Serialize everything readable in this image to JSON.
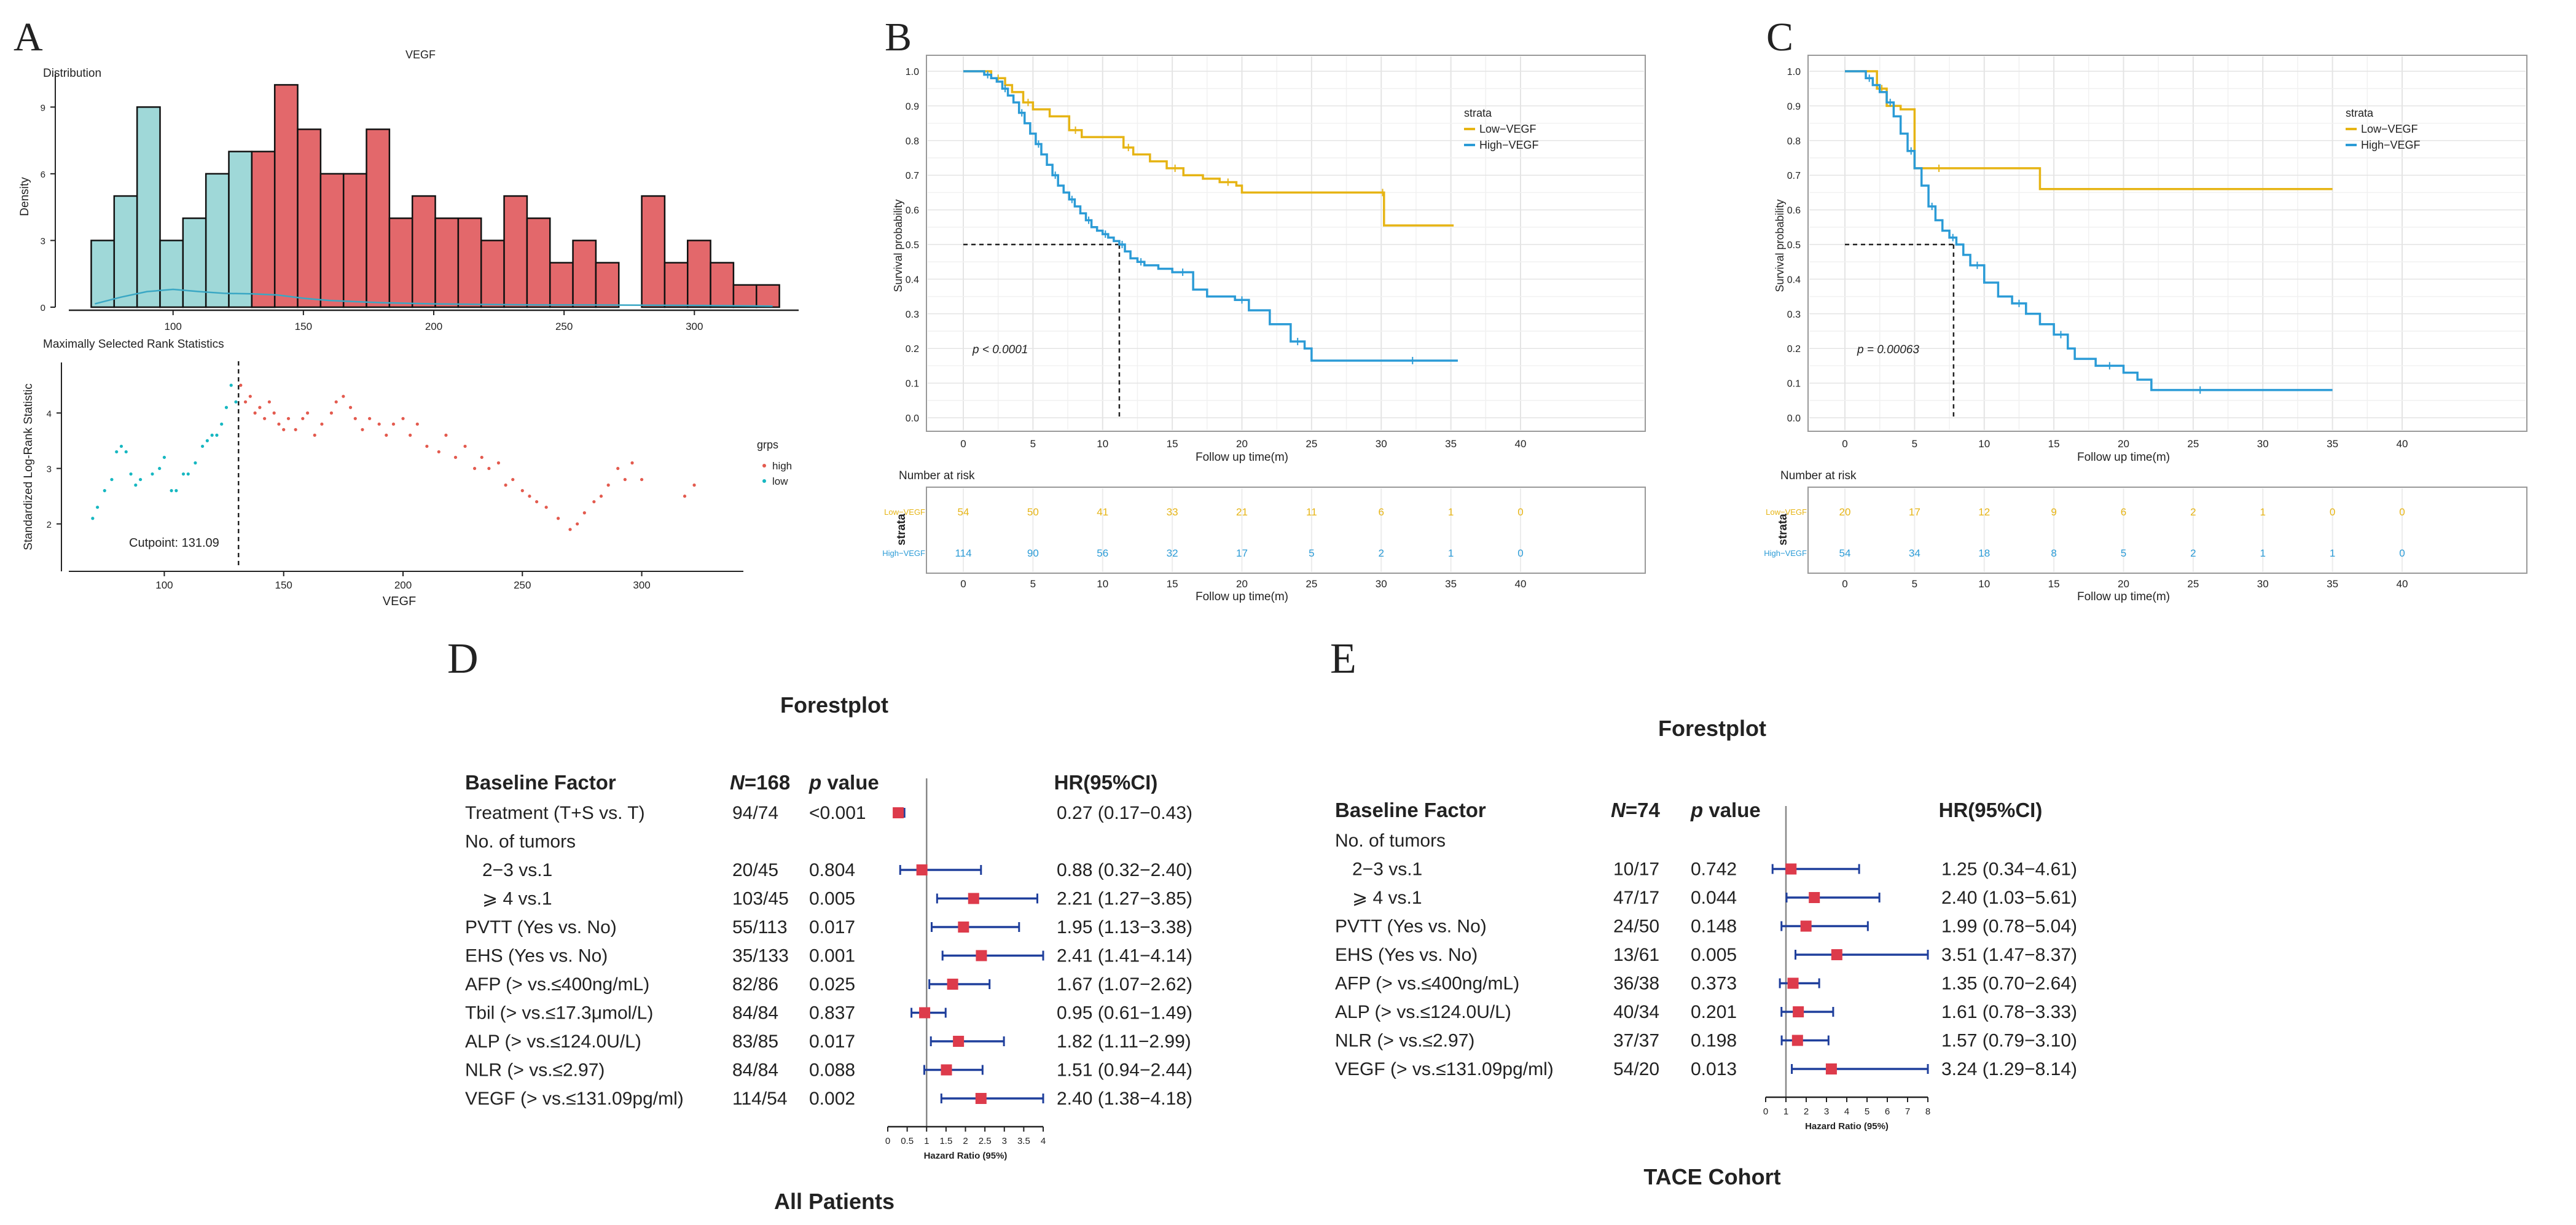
{
  "panel_letters": {
    "a": "A",
    "b": "B",
    "c": "C",
    "d": "D",
    "e": "E"
  },
  "colors": {
    "teal": "#9fd8d8",
    "red": "#e3686b",
    "gold": "#e6b414",
    "blue": "#2b9bd6",
    "navy": "#1f3f9c",
    "dark": "#222222"
  },
  "chart_data": [
    {
      "id": "A-top",
      "type": "bar",
      "title": "VEGF",
      "subtitle": "Distribution",
      "xlabel": "",
      "ylabel": "Density",
      "xlim": [
        60,
        340
      ],
      "ylim": [
        0,
        10.5
      ],
      "xticks": [
        100,
        150,
        200,
        250,
        300
      ],
      "yticks": [
        0,
        3,
        6,
        9
      ],
      "bin_width": 8.8,
      "series": [
        {
          "name": "low",
          "color_key": "teal",
          "starts": [
            68.6,
            77.4,
            86.2,
            95,
            103.8,
            112.6,
            121.4,
            130.2
          ],
          "values": [
            3,
            5,
            9,
            3,
            4,
            6,
            7,
            2
          ]
        },
        {
          "name": "high",
          "color_key": "red",
          "starts": [
            130.2,
            139,
            147.8,
            156.6,
            165.4,
            174.2,
            183,
            191.8,
            200.6,
            209.4,
            218.2,
            227,
            235.8,
            244.6,
            253.4,
            262.2,
            271,
            279.8,
            288.6,
            297.4,
            306.2,
            315,
            323.8
          ],
          "values": [
            7,
            10,
            8,
            6,
            6,
            8,
            4,
            5,
            4,
            4,
            3,
            5,
            4,
            2,
            3,
            2,
            0,
            5,
            2,
            3,
            2,
            1,
            1
          ]
        }
      ],
      "density_curve": {
        "x": [
          70,
          80,
          90,
          100,
          110,
          120,
          130,
          140,
          150,
          160,
          170,
          180,
          200,
          220,
          240,
          260,
          280,
          300,
          320,
          330
        ],
        "y": [
          0.15,
          0.45,
          0.7,
          0.8,
          0.7,
          0.62,
          0.6,
          0.55,
          0.4,
          0.3,
          0.25,
          0.2,
          0.15,
          0.12,
          0.1,
          0.1,
          0.09,
          0.08,
          0.06,
          0.05
        ]
      }
    },
    {
      "id": "A-bottom",
      "type": "scatter",
      "title": "Maximally Selected Rank Statistics",
      "xlabel": "VEGF",
      "ylabel": "Standardized Log-Rank Statistic",
      "xlim": [
        60,
        340
      ],
      "ylim": [
        1.2,
        5.0
      ],
      "xticks": [
        100,
        150,
        200,
        250,
        300
      ],
      "yticks": [
        2,
        3,
        4
      ],
      "cutpoint": 131.09,
      "cutpoint_label": "Cutpoint: 131.09",
      "legend_title": "grps",
      "legend_items": [
        "high",
        "low"
      ],
      "series": [
        {
          "name": "low",
          "color_key": "teal",
          "x": [
            70,
            72,
            75,
            78,
            80,
            82,
            84,
            86,
            88,
            90,
            95,
            98,
            100,
            103,
            105,
            108,
            110,
            113,
            116,
            118,
            120,
            122,
            124,
            126,
            128,
            130
          ],
          "y": [
            2.1,
            2.3,
            2.6,
            2.8,
            3.3,
            3.4,
            3.3,
            2.9,
            2.7,
            2.8,
            2.9,
            3.0,
            3.2,
            2.6,
            2.6,
            2.9,
            2.9,
            3.1,
            3.4,
            3.5,
            3.6,
            3.6,
            3.8,
            4.1,
            4.5,
            4.2
          ]
        },
        {
          "name": "high",
          "color_key": "red",
          "x": [
            132,
            134,
            136,
            138,
            140,
            142,
            144,
            146,
            148,
            150,
            152,
            155,
            158,
            160,
            163,
            166,
            170,
            172,
            175,
            178,
            180,
            183,
            186,
            190,
            193,
            196,
            200,
            203,
            206,
            210,
            215,
            218,
            222,
            226,
            230,
            233,
            236,
            240,
            243,
            246,
            250,
            253,
            256,
            260,
            265,
            270,
            273,
            276,
            280,
            283,
            286,
            290,
            293,
            296,
            300,
            318,
            322
          ],
          "y": [
            4.5,
            4.2,
            4.3,
            4.0,
            4.1,
            3.9,
            4.2,
            4.0,
            3.8,
            3.7,
            3.9,
            3.7,
            3.9,
            4.0,
            3.6,
            3.8,
            4.0,
            4.2,
            4.3,
            4.1,
            3.9,
            3.7,
            3.9,
            3.8,
            3.6,
            3.8,
            3.9,
            3.6,
            3.8,
            3.4,
            3.3,
            3.6,
            3.2,
            3.4,
            3.0,
            3.2,
            3.0,
            3.1,
            2.7,
            2.8,
            2.6,
            2.5,
            2.4,
            2.3,
            2.1,
            1.9,
            2.0,
            2.2,
            2.4,
            2.5,
            2.7,
            3.0,
            2.8,
            3.1,
            2.8,
            2.5,
            2.7
          ]
        }
      ]
    },
    {
      "id": "B",
      "type": "line",
      "xlabel": "Follow up time(m)",
      "ylabel": "Survival probability",
      "xlim": [
        0,
        40
      ],
      "ylim": [
        0,
        1
      ],
      "xticks": [
        0,
        5,
        10,
        15,
        20,
        25,
        30,
        35,
        40
      ],
      "yticks": [
        0.0,
        0.1,
        0.2,
        0.3,
        0.4,
        0.5,
        0.6,
        0.7,
        0.8,
        0.9,
        1.0
      ],
      "pvalue": "p < 0.0001",
      "legend_title": "strata",
      "median_x": 11.2,
      "series": [
        {
          "name": "Low−VEGF",
          "color_key": "gold",
          "x": [
            0,
            2,
            3,
            3.5,
            4.3,
            5,
            6.2,
            7.6,
            8.5,
            10,
            11.5,
            12.2,
            13.4,
            14.6,
            15.8,
            17.2,
            18.4,
            19.6,
            20,
            30,
            30.2,
            35.2
          ],
          "y": [
            1.0,
            0.98,
            0.96,
            0.94,
            0.91,
            0.89,
            0.87,
            0.83,
            0.81,
            0.81,
            0.78,
            0.76,
            0.74,
            0.72,
            0.7,
            0.69,
            0.68,
            0.67,
            0.65,
            0.65,
            0.555,
            0.555
          ]
        },
        {
          "name": "High−VEGF",
          "color_key": "blue",
          "x": [
            0,
            1.5,
            2,
            2.4,
            2.8,
            3.2,
            3.6,
            4,
            4.4,
            4.8,
            5.2,
            5.6,
            6,
            6.4,
            6.8,
            7.2,
            7.6,
            8,
            8.4,
            8.8,
            9.2,
            9.6,
            10,
            10.4,
            10.8,
            11.2,
            11.6,
            12,
            12.5,
            13,
            14,
            15,
            16.5,
            17.5,
            19.5,
            20.5,
            22,
            23.5,
            24.5,
            25,
            29,
            35.5
          ],
          "y": [
            1.0,
            0.99,
            0.98,
            0.97,
            0.95,
            0.93,
            0.91,
            0.88,
            0.85,
            0.82,
            0.79,
            0.76,
            0.73,
            0.7,
            0.67,
            0.65,
            0.63,
            0.61,
            0.59,
            0.57,
            0.55,
            0.54,
            0.53,
            0.52,
            0.51,
            0.5,
            0.48,
            0.46,
            0.45,
            0.44,
            0.43,
            0.42,
            0.37,
            0.35,
            0.34,
            0.31,
            0.27,
            0.22,
            0.2,
            0.165,
            0.165,
            0.165
          ]
        }
      ],
      "risk_table": {
        "title": "Number at risk",
        "ylabel": "strata",
        "row_labels": [
          "Low−VEGF",
          "High−VEGF"
        ],
        "times": [
          0,
          5,
          10,
          15,
          20,
          25,
          30,
          35,
          40
        ],
        "rows": [
          [
            "54",
            "50",
            "41",
            "33",
            "21",
            "11",
            "6",
            "1",
            "0"
          ],
          [
            "114",
            "90",
            "56",
            "32",
            "17",
            "5",
            "2",
            "1",
            "0"
          ]
        ]
      }
    },
    {
      "id": "C",
      "type": "line",
      "xlabel": "Follow up time(m)",
      "ylabel": "Survival probability",
      "xlim": [
        0,
        40
      ],
      "ylim": [
        0,
        1
      ],
      "xticks": [
        0,
        5,
        10,
        15,
        20,
        25,
        30,
        35,
        40
      ],
      "yticks": [
        0.0,
        0.1,
        0.2,
        0.3,
        0.4,
        0.5,
        0.6,
        0.7,
        0.8,
        0.9,
        1.0
      ],
      "pvalue": "p = 0.00063",
      "legend_title": "strata",
      "median_x": 7.8,
      "series": [
        {
          "name": "Low−VEGF",
          "color_key": "gold",
          "x": [
            0,
            2.3,
            3,
            4,
            5,
            8.5,
            14,
            35
          ],
          "y": [
            1.0,
            0.95,
            0.9,
            0.89,
            0.72,
            0.72,
            0.66,
            0.66
          ]
        },
        {
          "name": "High−VEGF",
          "color_key": "blue",
          "x": [
            0,
            1.5,
            2,
            2.5,
            3,
            3.5,
            4,
            4.5,
            5,
            5.5,
            6,
            6.5,
            7,
            7.5,
            8,
            8.5,
            9,
            10,
            11,
            12,
            13,
            14,
            15,
            16,
            16.5,
            18,
            20,
            21,
            22,
            29,
            35
          ],
          "y": [
            1.0,
            0.98,
            0.96,
            0.94,
            0.91,
            0.87,
            0.82,
            0.77,
            0.72,
            0.67,
            0.61,
            0.57,
            0.54,
            0.52,
            0.5,
            0.47,
            0.44,
            0.39,
            0.35,
            0.33,
            0.3,
            0.27,
            0.24,
            0.2,
            0.17,
            0.15,
            0.13,
            0.11,
            0.08,
            0.08,
            0.08
          ]
        }
      ],
      "risk_table": {
        "title": "Number at risk",
        "ylabel": "strata",
        "row_labels": [
          "Low−VEGF",
          "High−VEGF"
        ],
        "times": [
          0,
          5,
          10,
          15,
          20,
          25,
          30,
          35,
          40
        ],
        "rows": [
          [
            "20",
            "17",
            "12",
            "9",
            "6",
            "2",
            "1",
            "0",
            "0"
          ],
          [
            "54",
            "34",
            "18",
            "8",
            "5",
            "2",
            "1",
            "1",
            "0"
          ]
        ]
      }
    },
    {
      "id": "D",
      "type": "table",
      "title": "Forestplot",
      "caption": "All Patients",
      "headers": {
        "factor": "Baseline Factor",
        "n_label": "N",
        "n_total": "=168",
        "p": "p",
        "p_suffix": " value",
        "hr": "HR(95%CI)"
      },
      "axis_label": "Hazard Ratio (95%)",
      "xlim": [
        0,
        4
      ],
      "xticks": [
        "0",
        "0.5",
        "1",
        "1.5",
        "2",
        "2.5",
        "3",
        "3.5",
        "4"
      ],
      "rows": [
        {
          "factor": "Treatment (T+S vs. T)",
          "n": "94/74",
          "p": "<0.001",
          "hr_text": "0.27 (0.17−0.43)",
          "hr": 0.27,
          "lo": 0.17,
          "hi": 0.43
        },
        {
          "factor": "No. of tumors",
          "n": "",
          "p": "",
          "hr_text": "",
          "hr": null,
          "lo": null,
          "hi": null
        },
        {
          "factor": "  2−3 vs.1",
          "n": "20/45",
          "p": "0.804",
          "hr_text": "0.88 (0.32−2.40)",
          "hr": 0.88,
          "lo": 0.32,
          "hi": 2.4
        },
        {
          "factor": "  ⩾ 4 vs.1",
          "n": "103/45",
          "p": "0.005",
          "hr_text": "2.21 (1.27−3.85)",
          "hr": 2.21,
          "lo": 1.27,
          "hi": 3.85
        },
        {
          "factor": "PVTT (Yes vs. No)",
          "n": "55/113",
          "p": "0.017",
          "hr_text": "1.95 (1.13−3.38)",
          "hr": 1.95,
          "lo": 1.13,
          "hi": 3.38
        },
        {
          "factor": "EHS (Yes vs. No)",
          "n": "35/133",
          "p": "0.001",
          "hr_text": "2.41 (1.41−4.14)",
          "hr": 2.41,
          "lo": 1.41,
          "hi": 4.14
        },
        {
          "factor": "AFP (> vs.≤400ng/mL)",
          "n": "82/86",
          "p": "0.025",
          "hr_text": "1.67 (1.07−2.62)",
          "hr": 1.67,
          "lo": 1.07,
          "hi": 2.62
        },
        {
          "factor": "Tbil (> vs.≤17.3μmol/L)",
          "n": "84/84",
          "p": "0.837",
          "hr_text": "0.95 (0.61−1.49)",
          "hr": 0.95,
          "lo": 0.61,
          "hi": 1.49
        },
        {
          "factor": "ALP (> vs.≤124.0U/L)",
          "n": "83/85",
          "p": "0.017",
          "hr_text": "1.82 (1.11−2.99)",
          "hr": 1.82,
          "lo": 1.11,
          "hi": 2.99
        },
        {
          "factor": "NLR (> vs.≤2.97)",
          "n": "84/84",
          "p": "0.088",
          "hr_text": "1.51 (0.94−2.44)",
          "hr": 1.51,
          "lo": 0.94,
          "hi": 2.44
        },
        {
          "factor": "VEGF (> vs.≤131.09pg/ml)",
          "n": "114/54",
          "p": "0.002",
          "hr_text": "2.40 (1.38−4.18)",
          "hr": 2.4,
          "lo": 1.38,
          "hi": 4.18
        }
      ]
    },
    {
      "id": "E",
      "type": "table",
      "title": "Forestplot",
      "caption": "TACE Cohort",
      "headers": {
        "factor": "Baseline Factor",
        "n_label": "N",
        "n_total": "=74",
        "p": "p",
        "p_suffix": " value",
        "hr": "HR(95%CI)"
      },
      "axis_label": "Hazard Ratio (95%)",
      "xlim": [
        0,
        8
      ],
      "xticks": [
        "0",
        "1",
        "2",
        "3",
        "4",
        "5",
        "6",
        "7",
        "8"
      ],
      "rows": [
        {
          "factor": "No. of tumors",
          "n": "",
          "p": "",
          "hr_text": "",
          "hr": null,
          "lo": null,
          "hi": null
        },
        {
          "factor": "  2−3 vs.1",
          "n": "10/17",
          "p": "0.742",
          "hr_text": "1.25 (0.34−4.61)",
          "hr": 1.25,
          "lo": 0.34,
          "hi": 4.61
        },
        {
          "factor": "  ⩾ 4 vs.1",
          "n": "47/17",
          "p": "0.044",
          "hr_text": "2.40 (1.03−5.61)",
          "hr": 2.4,
          "lo": 1.03,
          "hi": 5.61
        },
        {
          "factor": "PVTT (Yes vs. No)",
          "n": "24/50",
          "p": "0.148",
          "hr_text": "1.99 (0.78−5.04)",
          "hr": 1.99,
          "lo": 0.78,
          "hi": 5.04
        },
        {
          "factor": "EHS (Yes vs. No)",
          "n": "13/61",
          "p": "0.005",
          "hr_text": "3.51 (1.47−8.37)",
          "hr": 3.51,
          "lo": 1.47,
          "hi": 8.37
        },
        {
          "factor": "AFP (> vs.≤400ng/mL)",
          "n": "36/38",
          "p": "0.373",
          "hr_text": "1.35 (0.70−2.64)",
          "hr": 1.35,
          "lo": 0.7,
          "hi": 2.64
        },
        {
          "factor": "ALP (> vs.≤124.0U/L)",
          "n": "40/34",
          "p": "0.201",
          "hr_text": "1.61 (0.78−3.33)",
          "hr": 1.61,
          "lo": 0.78,
          "hi": 3.33
        },
        {
          "factor": "NLR (> vs.≤2.97)",
          "n": "37/37",
          "p": "0.198",
          "hr_text": "1.57 (0.79−3.10)",
          "hr": 1.57,
          "lo": 0.79,
          "hi": 3.1
        },
        {
          "factor": "VEGF (> vs.≤131.09pg/ml)",
          "n": "54/20",
          "p": "0.013",
          "hr_text": "3.24 (1.29−8.14)",
          "hr": 3.24,
          "lo": 1.29,
          "hi": 8.14
        }
      ]
    }
  ]
}
